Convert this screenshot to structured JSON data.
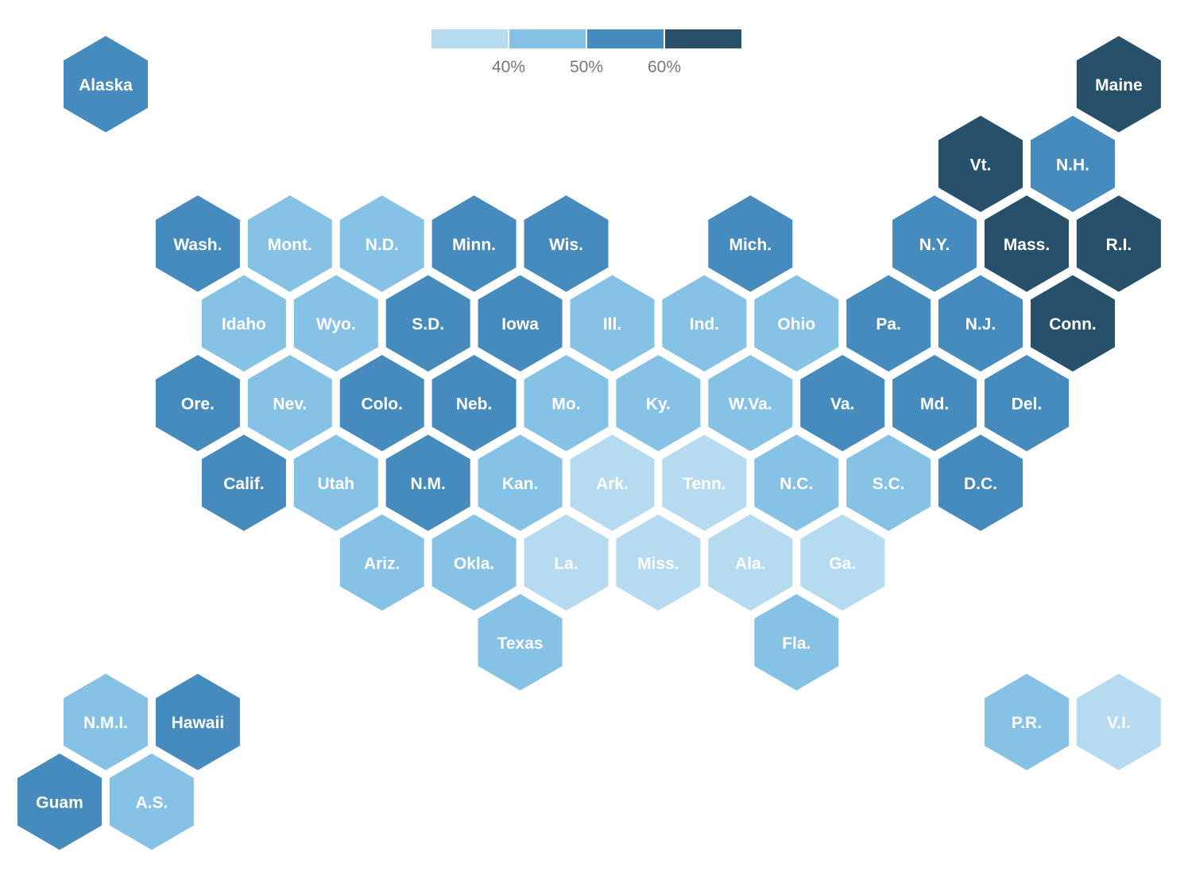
{
  "legend": {
    "ticks": [
      "40%",
      "50%",
      "60%"
    ],
    "colors": [
      "#b6daf0",
      "#86c1e6",
      "#468bbd",
      "#27506a"
    ]
  },
  "hexes": [
    {
      "label": "Alaska",
      "col": 0,
      "row": 0,
      "bin": 2
    },
    {
      "label": "Maine",
      "col": 11,
      "row": 0,
      "bin": 3
    },
    {
      "label": "Vt.",
      "col": 9.5,
      "row": 1,
      "bin": 3
    },
    {
      "label": "N.H.",
      "col": 10.5,
      "row": 1,
      "bin": 2
    },
    {
      "label": "Wash.",
      "col": 1,
      "row": 2,
      "bin": 2
    },
    {
      "label": "Mont.",
      "col": 2,
      "row": 2,
      "bin": 1
    },
    {
      "label": "N.D.",
      "col": 3,
      "row": 2,
      "bin": 1
    },
    {
      "label": "Minn.",
      "col": 4,
      "row": 2,
      "bin": 2
    },
    {
      "label": "Wis.",
      "col": 5,
      "row": 2,
      "bin": 2
    },
    {
      "label": "Mich.",
      "col": 7,
      "row": 2,
      "bin": 2
    },
    {
      "label": "N.Y.",
      "col": 9,
      "row": 2,
      "bin": 2
    },
    {
      "label": "Mass.",
      "col": 10,
      "row": 2,
      "bin": 3
    },
    {
      "label": "R.I.",
      "col": 11,
      "row": 2,
      "bin": 3
    },
    {
      "label": "Idaho",
      "col": 1.5,
      "row": 3,
      "bin": 1
    },
    {
      "label": "Wyo.",
      "col": 2.5,
      "row": 3,
      "bin": 1
    },
    {
      "label": "S.D.",
      "col": 3.5,
      "row": 3,
      "bin": 2
    },
    {
      "label": "Iowa",
      "col": 4.5,
      "row": 3,
      "bin": 2
    },
    {
      "label": "Ill.",
      "col": 5.5,
      "row": 3,
      "bin": 1
    },
    {
      "label": "Ind.",
      "col": 6.5,
      "row": 3,
      "bin": 1
    },
    {
      "label": "Ohio",
      "col": 7.5,
      "row": 3,
      "bin": 1
    },
    {
      "label": "Pa.",
      "col": 8.5,
      "row": 3,
      "bin": 2
    },
    {
      "label": "N.J.",
      "col": 9.5,
      "row": 3,
      "bin": 2
    },
    {
      "label": "Conn.",
      "col": 10.5,
      "row": 3,
      "bin": 3
    },
    {
      "label": "Ore.",
      "col": 1,
      "row": 4,
      "bin": 2
    },
    {
      "label": "Nev.",
      "col": 2,
      "row": 4,
      "bin": 1
    },
    {
      "label": "Colo.",
      "col": 3,
      "row": 4,
      "bin": 2
    },
    {
      "label": "Neb.",
      "col": 4,
      "row": 4,
      "bin": 2
    },
    {
      "label": "Mo.",
      "col": 5,
      "row": 4,
      "bin": 1
    },
    {
      "label": "Ky.",
      "col": 6,
      "row": 4,
      "bin": 1
    },
    {
      "label": "W.Va.",
      "col": 7,
      "row": 4,
      "bin": 1
    },
    {
      "label": "Va.",
      "col": 8,
      "row": 4,
      "bin": 2
    },
    {
      "label": "Md.",
      "col": 9,
      "row": 4,
      "bin": 2
    },
    {
      "label": "Del.",
      "col": 10,
      "row": 4,
      "bin": 2
    },
    {
      "label": "Calif.",
      "col": 1.5,
      "row": 5,
      "bin": 2
    },
    {
      "label": "Utah",
      "col": 2.5,
      "row": 5,
      "bin": 1
    },
    {
      "label": "N.M.",
      "col": 3.5,
      "row": 5,
      "bin": 2
    },
    {
      "label": "Kan.",
      "col": 4.5,
      "row": 5,
      "bin": 1
    },
    {
      "label": "Ark.",
      "col": 5.5,
      "row": 5,
      "bin": 0
    },
    {
      "label": "Tenn.",
      "col": 6.5,
      "row": 5,
      "bin": 0
    },
    {
      "label": "N.C.",
      "col": 7.5,
      "row": 5,
      "bin": 1
    },
    {
      "label": "S.C.",
      "col": 8.5,
      "row": 5,
      "bin": 1
    },
    {
      "label": "D.C.",
      "col": 9.5,
      "row": 5,
      "bin": 2
    },
    {
      "label": "Ariz.",
      "col": 3,
      "row": 6,
      "bin": 1
    },
    {
      "label": "Okla.",
      "col": 4,
      "row": 6,
      "bin": 1
    },
    {
      "label": "La.",
      "col": 5,
      "row": 6,
      "bin": 0
    },
    {
      "label": "Miss.",
      "col": 6,
      "row": 6,
      "bin": 0
    },
    {
      "label": "Ala.",
      "col": 7,
      "row": 6,
      "bin": 0
    },
    {
      "label": "Ga.",
      "col": 8,
      "row": 6,
      "bin": 0
    },
    {
      "label": "Texas",
      "col": 4.5,
      "row": 7,
      "bin": 1
    },
    {
      "label": "Fla.",
      "col": 7.5,
      "row": 7,
      "bin": 1
    },
    {
      "label": "N.M.I.",
      "col": 0,
      "row": 8,
      "bin": 1
    },
    {
      "label": "Hawaii",
      "col": 1,
      "row": 8,
      "bin": 2
    },
    {
      "label": "P.R.",
      "col": 10,
      "row": 8,
      "bin": 1
    },
    {
      "label": "V.I.",
      "col": 11,
      "row": 8,
      "bin": 0
    },
    {
      "label": "Guam",
      "col": -0.5,
      "row": 9,
      "bin": 2
    },
    {
      "label": "A.S.",
      "col": 0.5,
      "row": 9,
      "bin": 1
    }
  ]
}
